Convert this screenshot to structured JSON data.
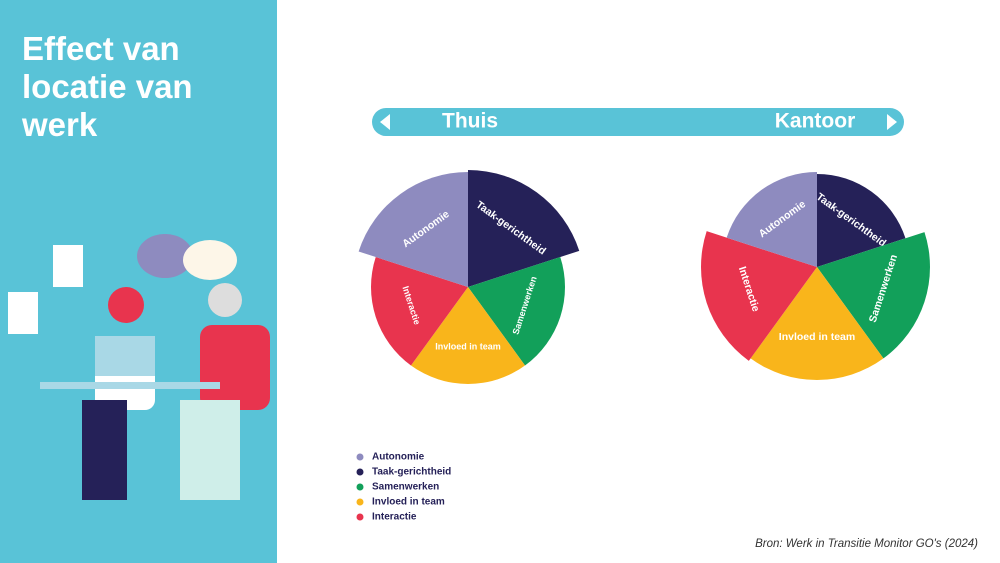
{
  "header": {
    "title": "Effect van locatie van werk"
  },
  "source": "Bron: Werk in Transitie Monitor GO's (2024)",
  "chart_data": [
    {
      "type": "polar-area",
      "title": "Thuis",
      "categories": [
        "Taak-gerichtheid",
        "Samenwerken",
        "Invloed in team",
        "Interactie",
        "Autonomie"
      ],
      "colors": [
        "#252158",
        "#12a05a",
        "#f9b51b",
        "#e8344e",
        "#8e8bbf"
      ],
      "values": [
        117,
        97,
        97,
        97,
        115
      ]
    },
    {
      "type": "polar-area",
      "title": "Kantoor",
      "categories": [
        "Taak-gerichtheid",
        "Samenwerken",
        "Invloed in team",
        "Interactie",
        "Autonomie"
      ],
      "colors": [
        "#252158",
        "#12a05a",
        "#f9b51b",
        "#e8344e",
        "#8e8bbf"
      ],
      "values": [
        93,
        113,
        113,
        116,
        95
      ]
    }
  ]
}
